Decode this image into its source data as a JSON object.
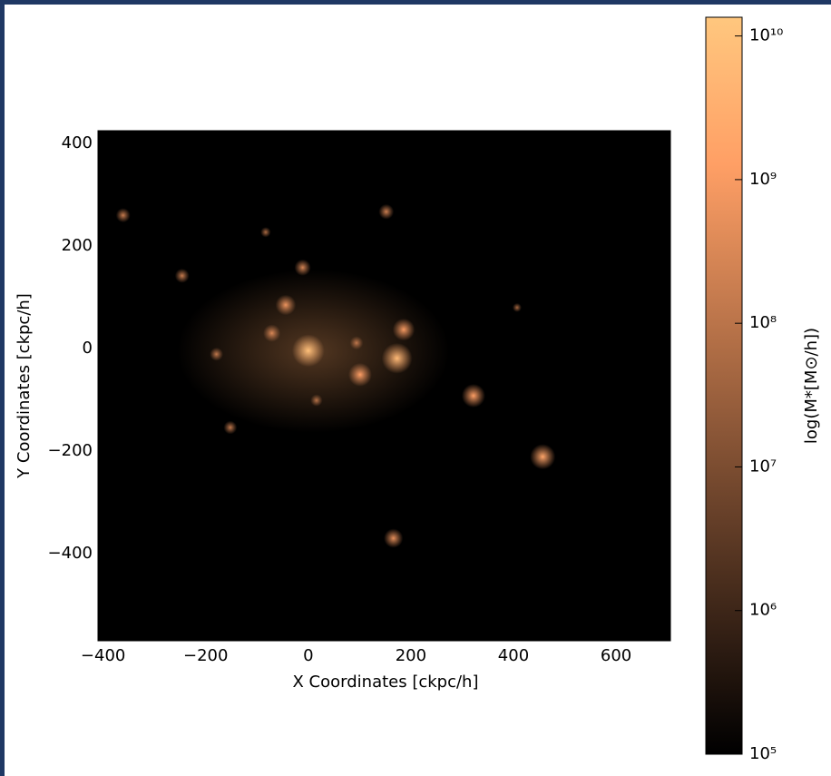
{
  "chart_data": {
    "type": "scatter",
    "x_label": "X Coordinates [ckpc/h]",
    "y_label": "Y Coordinates [ckpc/h]",
    "colorbar_label": "log(M*[M⊙/h])",
    "x": [
      0,
      173,
      186,
      101,
      322,
      457,
      166,
      -44,
      -11,
      -71,
      152,
      -361,
      -246,
      -179,
      -152,
      -83,
      16,
      94,
      407
    ],
    "y": [
      -4,
      -19,
      37,
      -51,
      -92,
      -211,
      -370,
      85,
      158,
      30,
      267,
      260,
      142,
      -11,
      -154,
      227,
      -101,
      11,
      80
    ],
    "values": [
      3000000000,
      2000000000,
      300000000,
      400000000,
      400000000,
      600000000,
      150000000,
      200000000,
      80000000,
      100000000,
      60000000,
      50000000,
      50000000,
      40000000,
      40000000,
      20000000,
      30000000,
      40000000,
      15000000
    ],
    "xlim": [
      -410,
      706
    ],
    "ylim": [
      -570,
      425
    ],
    "xticks": [
      {
        "value": -400,
        "label": "−400"
      },
      {
        "value": -200,
        "label": "−200"
      },
      0,
      200,
      400,
      600
    ],
    "yticks": [
      {
        "value": -400,
        "label": "−400"
      },
      {
        "value": -200,
        "label": "−200"
      },
      0,
      200,
      400
    ],
    "clim": [
      100000,
      13500000000
    ],
    "cticks": [
      {
        "value": 100000,
        "label": "10⁵"
      },
      {
        "value": 1000000,
        "label": "10⁶"
      },
      {
        "value": 10000000,
        "label": "10⁷"
      },
      {
        "value": 100000000,
        "label": "10⁸"
      },
      {
        "value": 1000000000,
        "label": "10⁹"
      },
      {
        "value": 10000000000,
        "label": "10¹⁰"
      }
    ],
    "colormap": "copper",
    "color_scale": "log",
    "background": "#000000"
  }
}
